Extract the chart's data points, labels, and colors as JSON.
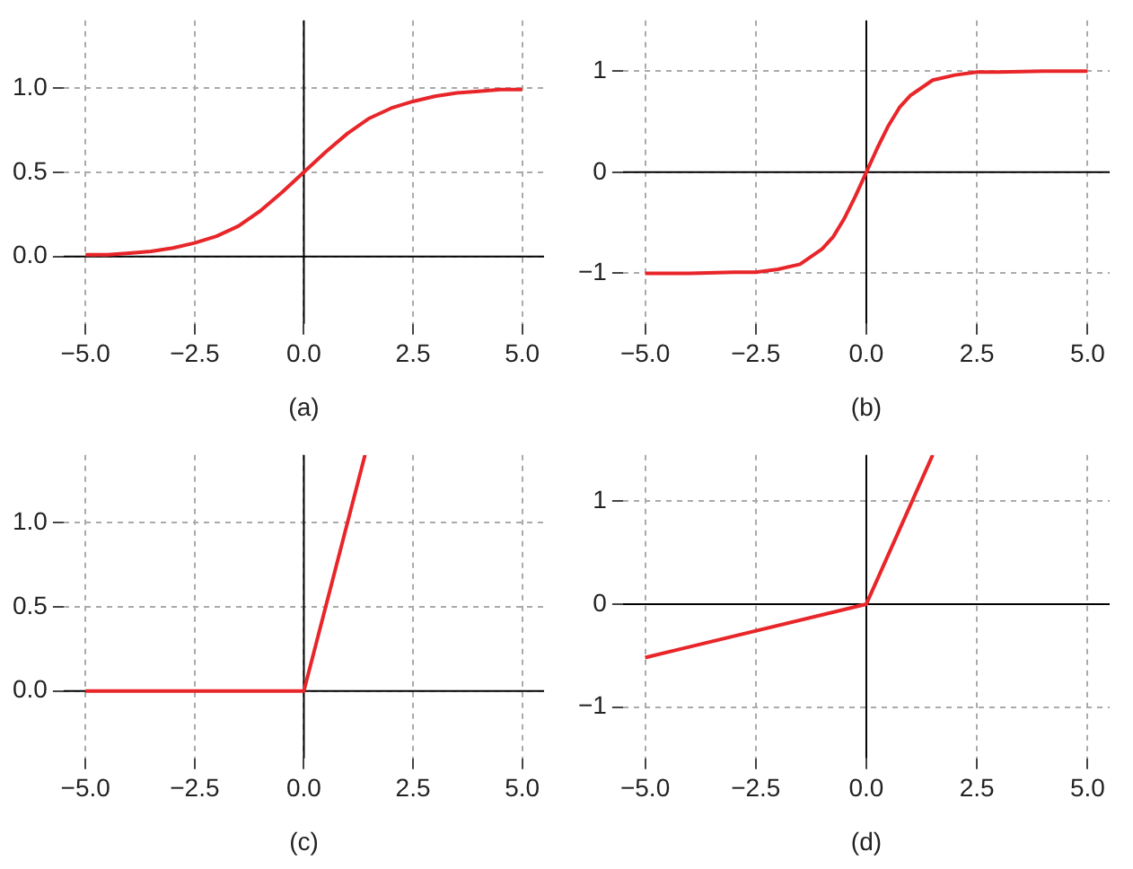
{
  "chart_data": [
    {
      "type": "line",
      "xlabel": "(a)",
      "xlim": [
        -5.5,
        5.5
      ],
      "ylim": [
        -0.4,
        1.4
      ],
      "xticks": [
        {
          "value": -5,
          "label": "−5.0"
        },
        {
          "value": -2.5,
          "label": "−2.5"
        },
        {
          "value": 0,
          "label": "0.0"
        },
        {
          "value": 2.5,
          "label": "2.5"
        },
        {
          "value": 5,
          "label": "5.0"
        }
      ],
      "yticks": [
        {
          "value": 0,
          "label": "0.0"
        },
        {
          "value": 0.5,
          "label": "0.5"
        },
        {
          "value": 1,
          "label": "1.0"
        }
      ],
      "grid": true,
      "marker": "none",
      "line_style": "solid",
      "x": [
        -5,
        -4.5,
        -4,
        -3.5,
        -3,
        -2.5,
        -2,
        -1.5,
        -1,
        -0.5,
        0,
        0.5,
        1,
        1.5,
        2,
        2.5,
        3,
        3.5,
        4,
        4.5,
        5
      ],
      "series": [
        {
          "color": "#e8262a",
          "values": [
            0.01,
            0.01,
            0.02,
            0.03,
            0.05,
            0.08,
            0.12,
            0.18,
            0.27,
            0.38,
            0.5,
            0.62,
            0.73,
            0.82,
            0.88,
            0.92,
            0.95,
            0.97,
            0.98,
            0.99,
            0.99
          ]
        }
      ]
    },
    {
      "type": "line",
      "xlabel": "(b)",
      "xlim": [
        -5.5,
        5.5
      ],
      "ylim": [
        -1.5,
        1.5
      ],
      "xticks": [
        {
          "value": -5,
          "label": "−5.0"
        },
        {
          "value": -2.5,
          "label": "−2.5"
        },
        {
          "value": 0,
          "label": "0.0"
        },
        {
          "value": 2.5,
          "label": "2.5"
        },
        {
          "value": 5,
          "label": "5.0"
        }
      ],
      "yticks": [
        {
          "value": -1,
          "label": "−1"
        },
        {
          "value": 0,
          "label": "0"
        },
        1
      ],
      "grid": true,
      "marker": "none",
      "line_style": "solid",
      "x": [
        -5,
        -4,
        -3,
        -2.5,
        -2,
        -1.5,
        -1,
        -0.75,
        -0.5,
        -0.25,
        0,
        0.25,
        0.5,
        0.75,
        1,
        1.5,
        2,
        2.5,
        3,
        4,
        5
      ],
      "series": [
        {
          "color": "#e8262a",
          "values": [
            -1,
            -1,
            -0.99,
            -0.99,
            -0.96,
            -0.91,
            -0.76,
            -0.64,
            -0.46,
            -0.24,
            0,
            0.24,
            0.46,
            0.64,
            0.76,
            0.91,
            0.96,
            0.99,
            0.99,
            1,
            1
          ]
        }
      ]
    },
    {
      "type": "line",
      "xlabel": "(c)",
      "xlim": [
        -5.5,
        5.5
      ],
      "ylim": [
        -0.4,
        1.4
      ],
      "xticks": [
        {
          "value": -5,
          "label": "−5.0"
        },
        {
          "value": -2.5,
          "label": "−2.5"
        },
        {
          "value": 0,
          "label": "0.0"
        },
        {
          "value": 2.5,
          "label": "2.5"
        },
        {
          "value": 5,
          "label": "5.0"
        }
      ],
      "yticks": [
        {
          "value": 0,
          "label": "0.0"
        },
        {
          "value": 0.5,
          "label": "0.5"
        },
        {
          "value": 1,
          "label": "1.0"
        }
      ],
      "grid": true,
      "marker": "none",
      "line_style": "solid",
      "x": [
        -5,
        0,
        1.4
      ],
      "series": [
        {
          "color": "#e8262a",
          "values": [
            0,
            0,
            1.4
          ]
        }
      ]
    },
    {
      "type": "line",
      "xlabel": "(d)",
      "xlim": [
        -5.5,
        5.5
      ],
      "ylim": [
        -1.5,
        1.45
      ],
      "xticks": [
        {
          "value": -5,
          "label": "−5.0"
        },
        {
          "value": -2.5,
          "label": "−2.5"
        },
        {
          "value": 0,
          "label": "0.0"
        },
        {
          "value": 2.5,
          "label": "2.5"
        },
        {
          "value": 5,
          "label": "5.0"
        }
      ],
      "yticks": [
        {
          "value": -1,
          "label": "−1"
        },
        {
          "value": 0,
          "label": "0"
        },
        1
      ],
      "grid": true,
      "marker": "none",
      "line_style": "solid",
      "x": [
        -5,
        0,
        1.5
      ],
      "series": [
        {
          "color": "#e8262a",
          "values": [
            -0.52,
            0,
            1.45
          ]
        }
      ]
    }
  ]
}
